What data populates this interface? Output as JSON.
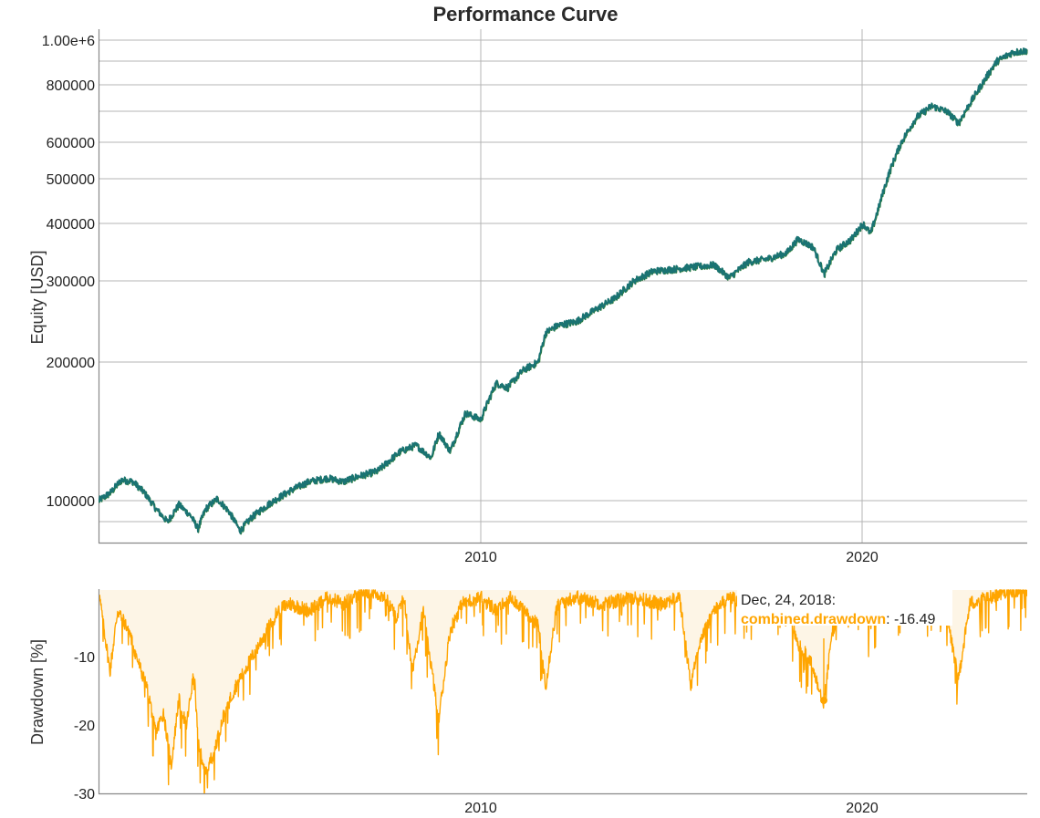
{
  "title": "Performance Curve",
  "colors": {
    "equity_line": "#1a7373",
    "equity_line_alt": "#2e7d32",
    "drawdown_line": "#ffa500",
    "drawdown_fill": "#fdf5e6",
    "grid": "#b4b4b4",
    "text": "#222222"
  },
  "equity_panel": {
    "ylabel": "Equity [USD]",
    "yticks": [
      "1.00e+6",
      "800000",
      "600000",
      "500000",
      "400000",
      "300000",
      "200000",
      "100000"
    ],
    "xticks": [
      "2010",
      "2020"
    ]
  },
  "drawdown_panel": {
    "ylabel": "Drawdown [%]",
    "yticks": [
      "-10",
      "-20",
      "-30"
    ],
    "xticks": [
      "2010",
      "2020"
    ]
  },
  "hover": {
    "date": "Dec, 24, 2018:",
    "series_name": "combined.drawdown",
    "separator": ": ",
    "value": "-16.49"
  },
  "chart_data": [
    {
      "type": "line",
      "title": "Performance Curve",
      "xlabel": "",
      "ylabel": "Equity [USD]",
      "yscale": "log",
      "ylim": [
        85000,
        1050000
      ],
      "xlim": [
        2000.0,
        2024.3
      ],
      "grid": true,
      "ytick_labels": [
        "100000",
        "200000",
        "300000",
        "400000",
        "500000",
        "600000",
        "800000",
        "1.00e+6"
      ],
      "xtick_labels": [
        "2010",
        "2020"
      ],
      "series": [
        {
          "name": "equity",
          "x": [
            2000.0,
            2000.3,
            2000.6,
            2000.9,
            2001.2,
            2001.5,
            2001.8,
            2002.1,
            2002.4,
            2002.6,
            2002.8,
            2003.1,
            2003.4,
            2003.7,
            2004.0,
            2004.5,
            2005.0,
            2005.5,
            2006.0,
            2006.4,
            2006.8,
            2007.3,
            2007.6,
            2007.9,
            2008.3,
            2008.7,
            2008.9,
            2009.2,
            2009.6,
            2010.0,
            2010.4,
            2010.7,
            2011.1,
            2011.5,
            2011.7,
            2012.0,
            2012.5,
            2013.0,
            2013.5,
            2014.0,
            2014.5,
            2015.0,
            2015.6,
            2016.1,
            2016.5,
            2017.0,
            2017.5,
            2018.0,
            2018.3,
            2018.7,
            2018.98,
            2019.3,
            2019.7,
            2020.0,
            2020.2,
            2020.4,
            2020.7,
            2021.0,
            2021.4,
            2021.8,
            2022.2,
            2022.5,
            2022.8,
            2023.1,
            2023.5,
            2023.9,
            2024.3
          ],
          "y": [
            100000,
            104000,
            111000,
            110000,
            104000,
            96000,
            90000,
            98000,
            93000,
            87000,
            96000,
            101000,
            95000,
            86000,
            92000,
            99000,
            105000,
            110000,
            112000,
            110000,
            113000,
            116000,
            122000,
            128000,
            132000,
            124000,
            140000,
            128000,
            155000,
            150000,
            180000,
            176000,
            192000,
            200000,
            232000,
            240000,
            245000,
            260000,
            275000,
            300000,
            315000,
            318000,
            322000,
            325000,
            305000,
            330000,
            335000,
            345000,
            370000,
            355000,
            310000,
            350000,
            370000,
            400000,
            380000,
            430000,
            520000,
            600000,
            680000,
            720000,
            700000,
            660000,
            730000,
            800000,
            900000,
            940000,
            950000
          ]
        }
      ]
    },
    {
      "type": "area",
      "title": "",
      "xlabel": "",
      "ylabel": "Drawdown [%]",
      "ylim": [
        -30,
        0
      ],
      "xlim": [
        2000.0,
        2024.3
      ],
      "grid": false,
      "ytick_labels": [
        "-10",
        "-20",
        "-30"
      ],
      "xtick_labels": [
        "2010",
        "2020"
      ],
      "annotation": {
        "x": "2018-12-24",
        "label": "combined.drawdown",
        "value": -16.49
      },
      "series": [
        {
          "name": "combined.drawdown",
          "x": [
            2000.0,
            2000.3,
            2000.5,
            2000.8,
            2001.0,
            2001.3,
            2001.5,
            2001.7,
            2001.9,
            2002.1,
            2002.3,
            2002.5,
            2002.6,
            2002.8,
            2003.0,
            2003.3,
            2003.6,
            2004.0,
            2004.4,
            2004.7,
            2005.0,
            2005.5,
            2006.0,
            2006.4,
            2007.0,
            2007.5,
            2007.8,
            2008.0,
            2008.2,
            2008.5,
            2008.9,
            2009.2,
            2009.5,
            2010.0,
            2010.4,
            2010.8,
            2011.5,
            2011.7,
            2012.0,
            2012.5,
            2013.2,
            2014.0,
            2014.7,
            2015.2,
            2015.5,
            2015.7,
            2016.1,
            2016.5,
            2017.0,
            2017.5,
            2018.0,
            2018.3,
            2018.6,
            2018.98,
            2019.2,
            2019.6,
            2020.0,
            2020.2,
            2020.5,
            2021.0,
            2021.5,
            2022.2,
            2022.5,
            2022.8,
            2023.3,
            2023.8,
            2024.3
          ],
          "y": [
            0,
            -12,
            -3,
            -6,
            -10,
            -15,
            -21,
            -18,
            -26,
            -16,
            -20,
            -12,
            -22,
            -27,
            -24,
            -18,
            -14,
            -10,
            -6,
            -3,
            -2,
            -3,
            -1,
            -2,
            0,
            -1,
            -4,
            -1,
            -12,
            -3,
            -19,
            -6,
            -2,
            -1,
            -3,
            -1,
            -5,
            -14,
            -2,
            -1,
            -2,
            -1,
            -2,
            -1,
            -14,
            -8,
            -3,
            -1,
            -2,
            0,
            -2,
            -8,
            -10,
            -16.49,
            -6,
            -1,
            -2,
            -5,
            0,
            -1,
            0,
            -4,
            -13,
            -2,
            -1,
            0,
            0
          ]
        }
      ]
    }
  ]
}
